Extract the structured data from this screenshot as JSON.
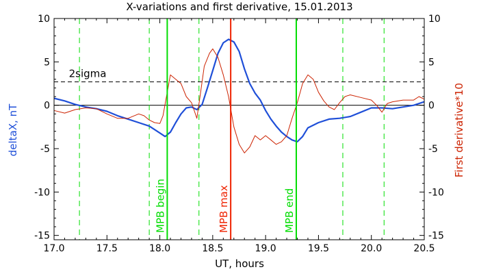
{
  "chart_data": {
    "type": "line",
    "title": "X-variations and first derivative, 15.01.2013",
    "xlabel": "UT, hours",
    "ylabel_left": "deltaX, nT",
    "ylabel_right": "First derivative*10",
    "xlim": [
      17.0,
      20.5
    ],
    "ylim": [
      -15.5,
      10
    ],
    "xticks": [
      "17.0",
      "17.5",
      "18.0",
      "18.5",
      "19.0",
      "19.5",
      "20.0",
      "20.5"
    ],
    "yticks_left": [
      "10",
      "5",
      "0",
      "-5",
      "-10",
      "-15"
    ],
    "yticks_right": [
      "10",
      "5",
      "0",
      "-5",
      "-10",
      "-15"
    ],
    "series": [
      {
        "name": "deltaX, nT",
        "color": "#1f4fd8",
        "x": [
          17.0,
          17.1,
          17.2,
          17.3,
          17.4,
          17.5,
          17.6,
          17.7,
          17.8,
          17.9,
          17.95,
          18.0,
          18.05,
          18.1,
          18.15,
          18.2,
          18.25,
          18.3,
          18.35,
          18.4,
          18.45,
          18.5,
          18.55,
          18.6,
          18.65,
          18.7,
          18.75,
          18.8,
          18.85,
          18.9,
          18.95,
          19.0,
          19.05,
          19.1,
          19.15,
          19.2,
          19.25,
          19.3,
          19.35,
          19.4,
          19.5,
          19.6,
          19.7,
          19.8,
          19.9,
          20.0,
          20.1,
          20.2,
          20.3,
          20.4,
          20.5
        ],
        "y": [
          0.8,
          0.5,
          0.1,
          -0.2,
          -0.4,
          -0.7,
          -1.2,
          -1.6,
          -2.0,
          -2.4,
          -2.8,
          -3.2,
          -3.6,
          -3.1,
          -2.0,
          -1.0,
          -0.3,
          -0.2,
          -0.5,
          0.1,
          2.0,
          4.0,
          6.0,
          7.2,
          7.6,
          7.3,
          6.2,
          4.2,
          2.5,
          1.4,
          0.6,
          -0.6,
          -1.6,
          -2.4,
          -3.1,
          -3.6,
          -4.0,
          -4.2,
          -3.6,
          -2.6,
          -2.0,
          -1.6,
          -1.5,
          -1.3,
          -0.8,
          -0.3,
          -0.3,
          -0.4,
          -0.2,
          0.0,
          0.4
        ]
      },
      {
        "name": "First derivative*10",
        "color": "#cc2200",
        "x": [
          17.0,
          17.1,
          17.2,
          17.3,
          17.4,
          17.5,
          17.6,
          17.7,
          17.8,
          17.85,
          17.9,
          17.95,
          18.0,
          18.03,
          18.07,
          18.1,
          18.15,
          18.2,
          18.25,
          18.3,
          18.35,
          18.38,
          18.42,
          18.47,
          18.5,
          18.55,
          18.6,
          18.65,
          18.7,
          18.75,
          18.8,
          18.85,
          18.9,
          18.95,
          19.0,
          19.05,
          19.1,
          19.15,
          19.2,
          19.25,
          19.3,
          19.35,
          19.4,
          19.45,
          19.5,
          19.55,
          19.6,
          19.65,
          19.7,
          19.75,
          19.8,
          19.9,
          20.0,
          20.05,
          20.1,
          20.15,
          20.2,
          20.3,
          20.4,
          20.45,
          20.5
        ],
        "y": [
          -0.6,
          -0.9,
          -0.5,
          -0.3,
          -0.4,
          -1.0,
          -1.5,
          -1.5,
          -1.0,
          -1.2,
          -1.7,
          -2.0,
          -2.1,
          -1.2,
          1.5,
          3.5,
          3.0,
          2.5,
          1.0,
          0.3,
          -1.5,
          1.0,
          4.5,
          6.0,
          6.5,
          5.5,
          3.5,
          1.0,
          -2.5,
          -4.5,
          -5.5,
          -4.8,
          -3.5,
          -4.0,
          -3.5,
          -4.0,
          -4.5,
          -4.2,
          -3.5,
          -1.5,
          0.3,
          2.5,
          3.5,
          3.0,
          1.5,
          0.5,
          -0.2,
          -0.5,
          0.3,
          1.0,
          1.2,
          0.9,
          0.6,
          0.0,
          -0.8,
          0.2,
          0.4,
          0.6,
          0.6,
          1.0,
          0.7
        ]
      }
    ],
    "reference_lines": {
      "sigma_level": 2.7,
      "sigma_label": "2sigma",
      "zero_level": 0
    },
    "dashed_verticals": [
      17.24,
      17.9,
      18.37,
      19.73,
      20.12
    ],
    "events": [
      {
        "x": 18.07,
        "label": "MPB begin",
        "color": "#00dd00"
      },
      {
        "x": 18.67,
        "label": "MPB max",
        "color": "#ee2200"
      },
      {
        "x": 19.29,
        "label": "MPB end",
        "color": "#00dd00"
      }
    ]
  }
}
